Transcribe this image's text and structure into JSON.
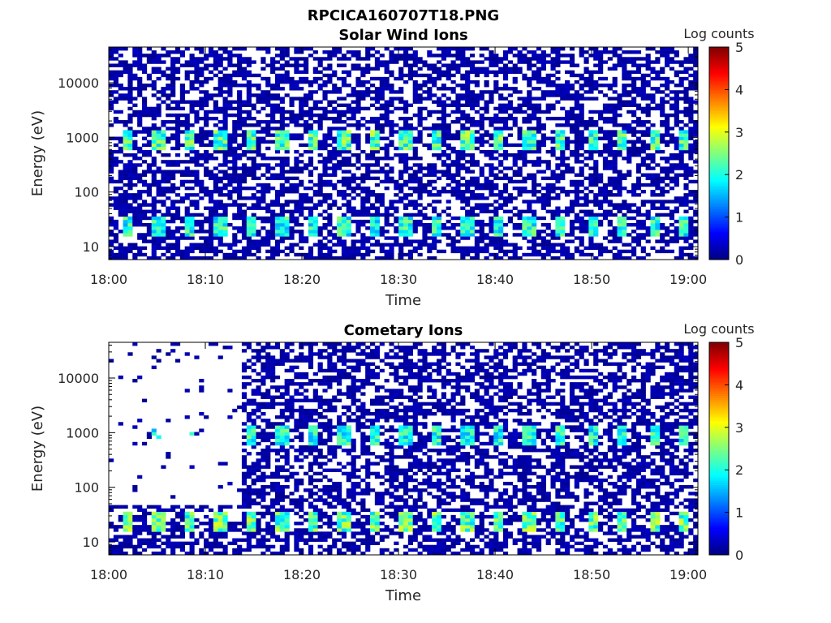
{
  "figure_title": "RPCICA160707T18.PNG",
  "chart_data": [
    {
      "type": "heatmap",
      "title": "Solar Wind Ions",
      "xlabel": "Time",
      "ylabel": "Energy (eV)",
      "x_ticks": [
        "18:00",
        "18:10",
        "18:20",
        "18:30",
        "18:40",
        "18:50",
        "19:00"
      ],
      "xlim": [
        "18:00",
        "19:01"
      ],
      "y_scale": "log",
      "y_ticks": [
        "10",
        "100",
        "1000",
        "10000"
      ],
      "ylim": [
        5.8,
        45000
      ],
      "colorbar_label": "Log counts",
      "colorbar_ticks": [
        "0",
        "1",
        "2",
        "3",
        "4",
        "5"
      ],
      "colorbar_range": [
        0,
        5
      ],
      "colormap": "jet",
      "grid": false,
      "sweep_period_min": 3.2,
      "bands": [
        {
          "energy_ev_min": 15,
          "energy_ev_max": 35,
          "peak_log_counts": 2.6,
          "note": "low-energy band"
        },
        {
          "energy_ev_min": 550,
          "energy_ev_max": 1400,
          "peak_log_counts": 2.9,
          "note": "solar wind peak band"
        }
      ],
      "background_log_counts": 0.2,
      "empty_region": null
    },
    {
      "type": "heatmap",
      "title": "Cometary Ions",
      "xlabel": "Time",
      "ylabel": "Energy (eV)",
      "x_ticks": [
        "18:00",
        "18:10",
        "18:20",
        "18:30",
        "18:40",
        "18:50",
        "19:00"
      ],
      "xlim": [
        "18:00",
        "19:01"
      ],
      "y_scale": "log",
      "y_ticks": [
        "10",
        "100",
        "1000",
        "10000"
      ],
      "ylim": [
        5.8,
        45000
      ],
      "colorbar_label": "Log counts",
      "colorbar_ticks": [
        "0",
        "1",
        "2",
        "3",
        "4",
        "5"
      ],
      "colorbar_range": [
        0,
        5
      ],
      "colormap": "jet",
      "grid": false,
      "sweep_period_min": 3.2,
      "bands": [
        {
          "energy_ev_min": 15,
          "energy_ev_max": 35,
          "peak_log_counts": 3.0,
          "note": "low-energy band"
        },
        {
          "energy_ev_min": 550,
          "energy_ev_max": 1400,
          "peak_log_counts": 2.6,
          "note": "peak band"
        }
      ],
      "background_log_counts": 0.2,
      "empty_region": {
        "time_start": "18:00",
        "time_end": "18:13.8",
        "energy_ev_min": 50,
        "energy_ev_max": 45000
      }
    }
  ]
}
